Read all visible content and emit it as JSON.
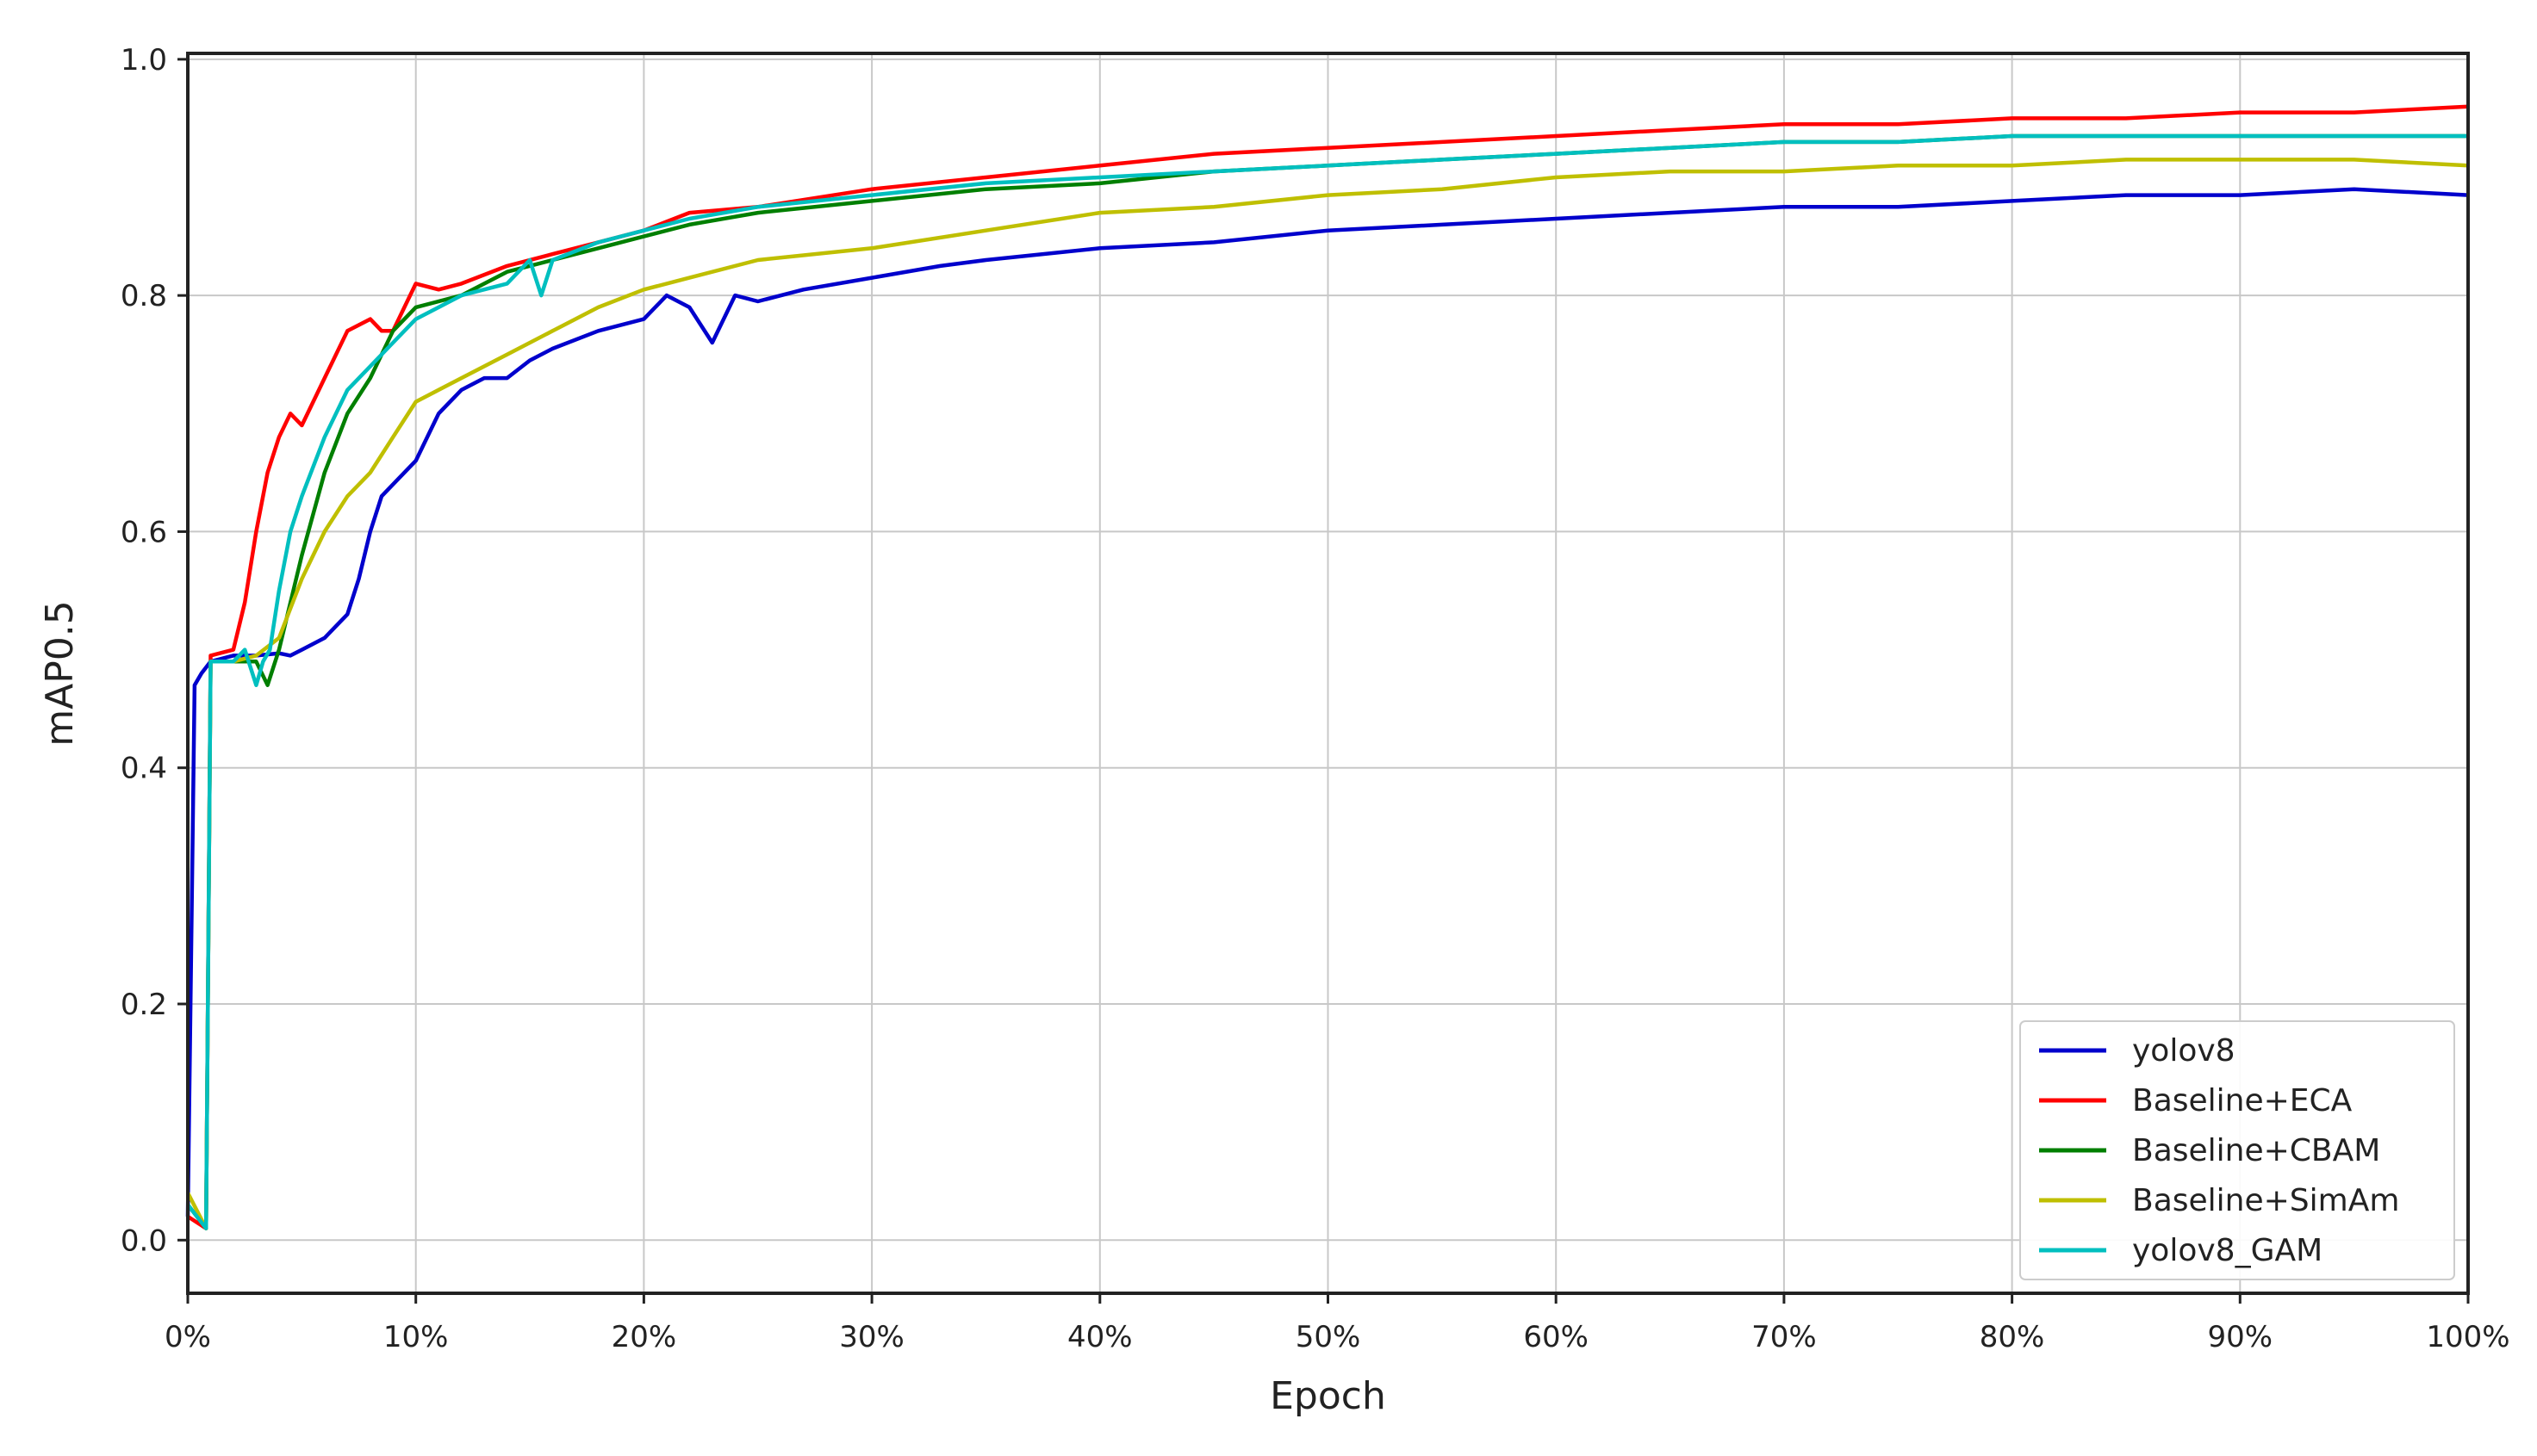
{
  "chart_data": {
    "type": "line",
    "title": "",
    "xlabel": "Epoch",
    "ylabel": "mAP0.5",
    "xlim": [
      0,
      100
    ],
    "ylim": [
      -0.045,
      1.005
    ],
    "x_unit": "%",
    "xticks": [
      0,
      10,
      20,
      30,
      40,
      50,
      60,
      70,
      80,
      90,
      100
    ],
    "xtick_labels": [
      "0%",
      "10%",
      "20%",
      "30%",
      "40%",
      "50%",
      "60%",
      "70%",
      "80%",
      "90%",
      "100%"
    ],
    "yticks": [
      0.0,
      0.2,
      0.4,
      0.6,
      0.8,
      1.0
    ],
    "ytick_labels": [
      "0.0",
      "0.2",
      "0.4",
      "0.6",
      "0.8",
      "1.0"
    ],
    "grid": true,
    "legend_position": "bottom-right",
    "series": [
      {
        "name": "yolov8",
        "color": "#0000cc",
        "x": [
          0,
          0.3,
          0.6,
          1,
          2,
          3,
          4,
          4.5,
          5,
          6,
          7,
          7.5,
          8,
          8.5,
          9,
          10,
          11,
          12,
          13,
          14,
          15,
          16,
          18,
          20,
          21,
          22,
          23,
          24,
          25,
          27,
          30,
          33,
          35,
          40,
          45,
          50,
          55,
          60,
          65,
          70,
          75,
          80,
          85,
          90,
          95,
          100
        ],
        "y": [
          0.02,
          0.47,
          0.48,
          0.49,
          0.495,
          0.495,
          0.497,
          0.495,
          0.5,
          0.51,
          0.53,
          0.56,
          0.6,
          0.63,
          0.64,
          0.66,
          0.7,
          0.72,
          0.73,
          0.73,
          0.745,
          0.755,
          0.77,
          0.78,
          0.8,
          0.79,
          0.76,
          0.8,
          0.795,
          0.805,
          0.815,
          0.825,
          0.83,
          0.84,
          0.845,
          0.855,
          0.86,
          0.865,
          0.87,
          0.875,
          0.875,
          0.88,
          0.885,
          0.885,
          0.89,
          0.885
        ]
      },
      {
        "name": "Baseline+ECA",
        "color": "#ff0000",
        "x": [
          0,
          0.8,
          1,
          2,
          2.5,
          3,
          3.5,
          4,
          4.5,
          5,
          6,
          7,
          8,
          8.5,
          9,
          10,
          11,
          12,
          14,
          16,
          18,
          20,
          22,
          25,
          30,
          35,
          40,
          45,
          50,
          55,
          60,
          65,
          70,
          75,
          80,
          85,
          90,
          95,
          100
        ],
        "y": [
          0.02,
          0.01,
          0.495,
          0.5,
          0.54,
          0.6,
          0.65,
          0.68,
          0.7,
          0.69,
          0.73,
          0.77,
          0.78,
          0.77,
          0.77,
          0.81,
          0.805,
          0.81,
          0.825,
          0.835,
          0.845,
          0.855,
          0.87,
          0.875,
          0.89,
          0.9,
          0.91,
          0.92,
          0.925,
          0.93,
          0.935,
          0.94,
          0.945,
          0.945,
          0.95,
          0.95,
          0.955,
          0.955,
          0.96
        ]
      },
      {
        "name": "Baseline+CBAM",
        "color": "#007f00",
        "x": [
          0,
          0.8,
          1,
          2,
          3,
          3.5,
          4,
          5,
          6,
          7,
          8,
          9,
          10,
          12,
          14,
          16,
          18,
          20,
          22,
          25,
          30,
          35,
          40,
          45,
          50,
          55,
          60,
          65,
          70,
          75,
          80,
          85,
          90,
          95,
          100
        ],
        "y": [
          0.03,
          0.01,
          0.49,
          0.49,
          0.49,
          0.47,
          0.5,
          0.58,
          0.65,
          0.7,
          0.73,
          0.77,
          0.79,
          0.8,
          0.82,
          0.83,
          0.84,
          0.85,
          0.86,
          0.87,
          0.88,
          0.89,
          0.895,
          0.905,
          0.91,
          0.915,
          0.92,
          0.925,
          0.93,
          0.93,
          0.935,
          0.935,
          0.935,
          0.935,
          0.935
        ]
      },
      {
        "name": "Baseline+SimAm",
        "color": "#bfbf00",
        "x": [
          0,
          0.8,
          1,
          2,
          3,
          4,
          5,
          6,
          7,
          8,
          9,
          10,
          12,
          14,
          16,
          18,
          20,
          22,
          25,
          30,
          35,
          40,
          45,
          50,
          55,
          60,
          65,
          70,
          75,
          80,
          85,
          90,
          95,
          100
        ],
        "y": [
          0.04,
          0.01,
          0.49,
          0.49,
          0.495,
          0.51,
          0.56,
          0.6,
          0.63,
          0.65,
          0.68,
          0.71,
          0.73,
          0.75,
          0.77,
          0.79,
          0.805,
          0.815,
          0.83,
          0.84,
          0.855,
          0.87,
          0.875,
          0.885,
          0.89,
          0.9,
          0.905,
          0.905,
          0.91,
          0.91,
          0.915,
          0.915,
          0.915,
          0.91
        ]
      },
      {
        "name": "yolov8_GAM",
        "color": "#00bfbf",
        "x": [
          0,
          0.8,
          1,
          2,
          2.5,
          3,
          3.3,
          3.6,
          4,
          4.5,
          5,
          6,
          7,
          8,
          9,
          10,
          11,
          12,
          14,
          15,
          15.5,
          16,
          18,
          20,
          22,
          25,
          30,
          35,
          40,
          45,
          50,
          55,
          60,
          65,
          70,
          75,
          80,
          85,
          90,
          95,
          100
        ],
        "y": [
          0.03,
          0.01,
          0.49,
          0.49,
          0.5,
          0.47,
          0.49,
          0.5,
          0.55,
          0.6,
          0.63,
          0.68,
          0.72,
          0.74,
          0.76,
          0.78,
          0.79,
          0.8,
          0.81,
          0.83,
          0.8,
          0.83,
          0.845,
          0.855,
          0.865,
          0.875,
          0.885,
          0.895,
          0.9,
          0.905,
          0.91,
          0.915,
          0.92,
          0.925,
          0.93,
          0.93,
          0.935,
          0.935,
          0.935,
          0.935,
          0.935
        ]
      }
    ]
  }
}
